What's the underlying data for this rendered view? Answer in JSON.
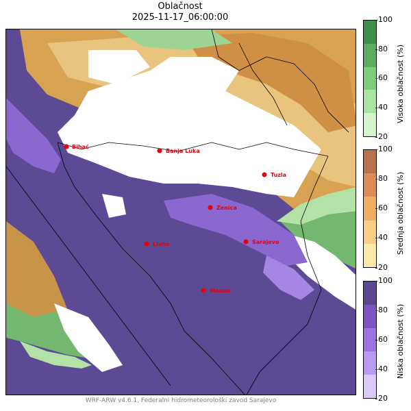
{
  "title": {
    "line1": "Oblačnost",
    "line2": "2025-11-17_06:00:00"
  },
  "footer": "WRF-ARW v4.6.1, Federalni hidrometeorološki zavod Sarajevo",
  "cities": [
    {
      "name": "Bihać"
    },
    {
      "name": "Banja Luka"
    },
    {
      "name": "Tuzla"
    },
    {
      "name": "Zenica"
    },
    {
      "name": "Sarajevo"
    },
    {
      "name": "Livno"
    },
    {
      "name": "Mostar"
    }
  ],
  "colorbars": [
    {
      "label": "Visoka oblačnost (%)",
      "ticks": [
        "100",
        "80",
        "60",
        "40",
        "20"
      ],
      "colors": [
        "#3f8f4a",
        "#5dab5f",
        "#7ccd7a",
        "#a9e4a2",
        "#d4f4cc"
      ]
    },
    {
      "label": "Srednja oblačnost (%)",
      "ticks": [
        "100",
        "80",
        "60",
        "40",
        "20"
      ],
      "colors": [
        "#b8734e",
        "#dc8c55",
        "#f0ad65",
        "#f8cd87",
        "#fde9ac"
      ]
    },
    {
      "label": "Niska oblačnost (%)",
      "ticks": [
        "100",
        "80",
        "60",
        "40",
        "20"
      ],
      "colors": [
        "#5c4890",
        "#7b55c0",
        "#9b73de",
        "#b89aee",
        "#dbcbfb"
      ]
    }
  ],
  "map_colors": {
    "low": "#5d4a95",
    "low_mid": "#7c57c4",
    "low_light": "#a586e4",
    "mid": "#d49a4a",
    "mid_light": "#e7c17d",
    "high": "#74b870",
    "high_light": "#b3e2a7",
    "clear": "#ffffff",
    "city_marker": "#e8000b"
  }
}
